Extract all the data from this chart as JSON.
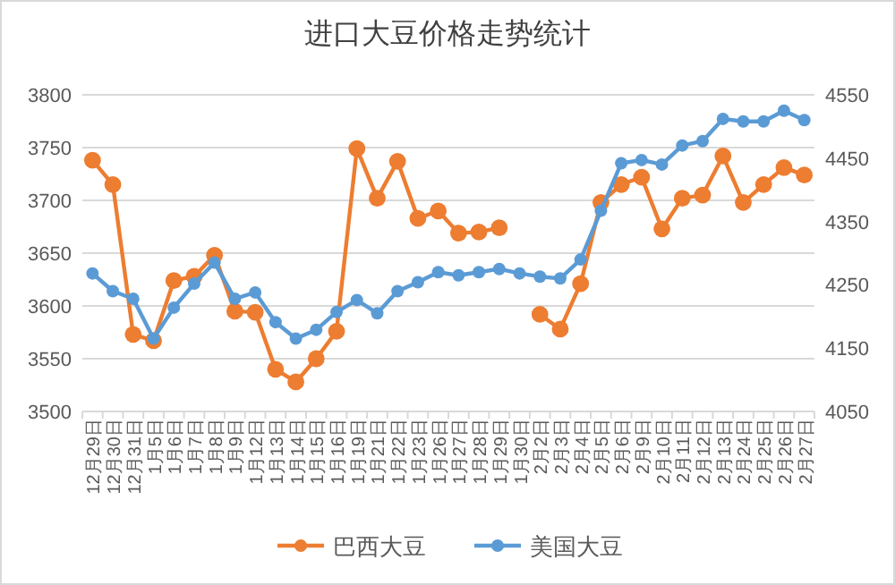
{
  "chart_data": {
    "type": "line",
    "title": "进口大豆价格走势统计",
    "categories": [
      "12月29日",
      "12月30日",
      "12月31日",
      "1月5日",
      "1月6日",
      "1月7日",
      "1月8日",
      "1月9日",
      "1月12日",
      "1月13日",
      "1月14日",
      "1月15日",
      "1月16日",
      "1月19日",
      "1月21日",
      "1月22日",
      "1月23日",
      "1月26日",
      "1月27日",
      "1月28日",
      "1月29日",
      "1月30日",
      "2月2日",
      "2月3日",
      "2月4日",
      "2月5日",
      "2月6日",
      "2月9日",
      "2月10日",
      "2月11日",
      "2月12日",
      "2月13日",
      "2月24日",
      "2月25日",
      "2月26日",
      "2月27日"
    ],
    "series": [
      {
        "name": "巴西大豆",
        "color": "#ed7d31",
        "values": [
          3738,
          3715,
          3573,
          3567,
          3624,
          3628,
          3648,
          3595,
          3594,
          3540,
          3528,
          3550,
          3576,
          3749,
          3702,
          3737,
          3683,
          3690,
          3669,
          3670,
          3674,
          null,
          3592,
          3578,
          3621,
          3698,
          3715,
          3722,
          3673,
          3702,
          3705,
          3742,
          3698,
          3715,
          3731,
          3724
        ]
      },
      {
        "name": "美国大豆",
        "color": "#5b9bd5",
        "axis": "y2",
        "values": [
          4268,
          4240,
          4228,
          4165,
          4214,
          4252,
          4285,
          4228,
          4238,
          4191,
          4165,
          4179,
          4207,
          4226,
          4205,
          4240,
          4254,
          4270,
          4265,
          4270,
          4275,
          4268,
          4263,
          4260,
          4290,
          4367,
          4442,
          4447,
          4440,
          4470,
          4477,
          4512,
          4508,
          4508,
          4525,
          4510
        ]
      }
    ],
    "ylim": [
      3500,
      3800
    ],
    "yticks": [
      3500,
      3550,
      3600,
      3650,
      3700,
      3750,
      3800
    ],
    "y2lim": [
      4050,
      4550
    ],
    "y2ticks": [
      4050,
      4150,
      4250,
      4350,
      4450,
      4550
    ],
    "grid": "y",
    "legend": "bottom",
    "marker": "circle",
    "line_style": "solid"
  }
}
